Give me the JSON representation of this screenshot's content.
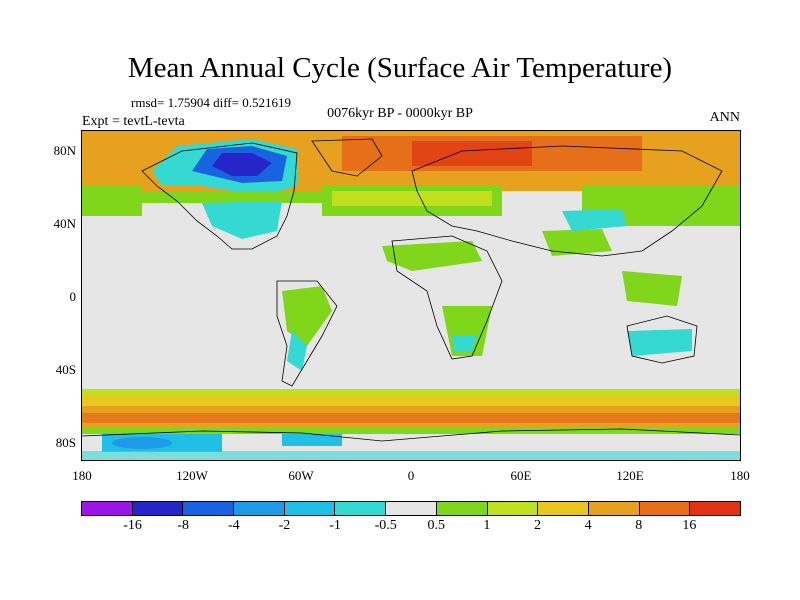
{
  "title": "Mean Annual Cycle (Surface Air Temperature)",
  "stats": "rmsd= 1.75904 diff= 0.521619",
  "expt": "Expt = tevtL-tevta",
  "period": "0076kyr BP - 0000kyr BP",
  "season": "ANN",
  "map": {
    "lat_labels": [
      "80N",
      "40N",
      "0",
      "40S",
      "80S"
    ],
    "lon_labels": [
      "180",
      "120W",
      "60W",
      "0",
      "60E",
      "120E",
      "180"
    ],
    "background": "#e6e6e6"
  },
  "legend": {
    "colors": [
      "#9b16e6",
      "#2525c9",
      "#1a63e0",
      "#1e9ae6",
      "#20bfe6",
      "#34d9d2",
      "#e6e6e6",
      "#7fd61a",
      "#c0e01e",
      "#e6c81e",
      "#e6a21e",
      "#e6701a",
      "#e03214"
    ],
    "labels": [
      "-16",
      "-8",
      "-4",
      "-2",
      "-1",
      "-0.5",
      "0.5",
      "1",
      "2",
      "4",
      "8",
      "16"
    ]
  }
}
